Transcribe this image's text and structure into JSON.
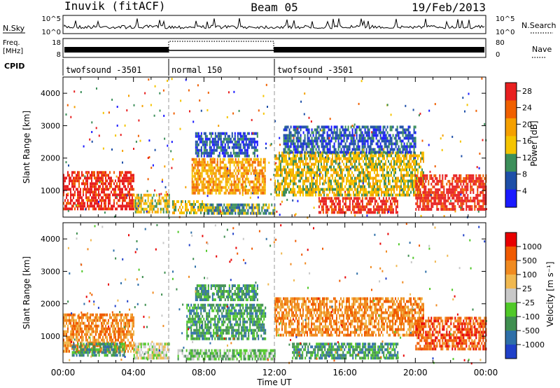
{
  "header": {
    "station": "Inuvik (fitACF)",
    "beam": "Beam 05",
    "date": "19/Feb/2013"
  },
  "strip": {
    "nsky_label": "N.Sky",
    "nsky_tick_top": "10^5",
    "nsky_tick_bottom": "10^0",
    "nsearch_label": "N.Search",
    "nsearch_tick_top": "10^5",
    "nsearch_tick_bottom": "10^0",
    "freq_label_1": "Freq.",
    "freq_label_2": "[MHz]",
    "freq_tick_top": "18",
    "freq_tick_bottom": "8",
    "nave_label": "Nave",
    "nave_tick_top": "80",
    "nave_tick_bottom": "0",
    "cpid_label": "CPID",
    "cpid_segments": [
      {
        "label": "twofsound -3501",
        "start_h": 0,
        "end_h": 6
      },
      {
        "label": "normal 150",
        "start_h": 6,
        "end_h": 12
      },
      {
        "label": "twofsound -3501",
        "start_h": 12,
        "end_h": 24
      }
    ]
  },
  "colors": {
    "power_scale": [
      "#1a1aff",
      "#1e4fa8",
      "#3c8f5a",
      "#f5c400",
      "#f5a000",
      "#f06000",
      "#e82020"
    ],
    "velocity_scale": [
      "#e80000",
      "#f05a00",
      "#f08a20",
      "#f0b850",
      "#c8c8c8",
      "#50c828",
      "#3f8f50",
      "#2e6fa8",
      "#2040c8"
    ]
  },
  "chart_data": [
    {
      "type": "heatmap",
      "name": "power",
      "xlabel": "",
      "ylabel": "Slant Range [km]",
      "xlim": [
        0,
        24
      ],
      "ylim": [
        180,
        4500
      ],
      "yticks": [
        "1000",
        "2000",
        "3000",
        "4000"
      ],
      "colorbar_label": "Power [dB]",
      "colorbar_ticks": [
        "4",
        "8",
        "12",
        "16",
        "20",
        "24",
        "28"
      ],
      "regions": [
        {
          "t0": 0,
          "t1": 4.0,
          "r0": 400,
          "r1": 1600,
          "level": 6
        },
        {
          "t0": 4.0,
          "t1": 6.0,
          "r0": 300,
          "r1": 900,
          "level": 3
        },
        {
          "t0": 6.2,
          "t1": 8.0,
          "r0": 300,
          "r1": 700,
          "level": 3
        },
        {
          "t0": 7.3,
          "t1": 11.5,
          "r0": 900,
          "r1": 2000,
          "level": 4
        },
        {
          "t0": 7.5,
          "t1": 11.0,
          "r0": 2100,
          "r1": 2800,
          "level": 1
        },
        {
          "t0": 8.0,
          "t1": 12.0,
          "r0": 300,
          "r1": 600,
          "level": 2
        },
        {
          "t0": 12.0,
          "t1": 20.5,
          "r0": 900,
          "r1": 2200,
          "level": 3
        },
        {
          "t0": 12.5,
          "t1": 20.0,
          "r0": 2200,
          "r1": 3000,
          "level": 1
        },
        {
          "t0": 14.5,
          "t1": 19.0,
          "r0": 300,
          "r1": 800,
          "level": 6
        },
        {
          "t0": 20.0,
          "t1": 24.0,
          "r0": 400,
          "r1": 1500,
          "level": 6
        }
      ]
    },
    {
      "type": "heatmap",
      "name": "velocity",
      "xlabel": "Time UT",
      "ylabel": "Slant Range [km]",
      "xlim": [
        0,
        24
      ],
      "ylim": [
        180,
        4500
      ],
      "xticks": [
        "00:00",
        "04:00",
        "08:00",
        "12:00",
        "16:00",
        "20:00",
        "00:00"
      ],
      "yticks": [
        "1000",
        "2000",
        "3000",
        "4000"
      ],
      "colorbar_label": "Velocity [m s⁻¹]",
      "colorbar_ticks": [
        "1000",
        "500",
        "100",
        "25",
        "-25",
        "-100",
        "-500",
        "-1000"
      ],
      "regions": [
        {
          "t0": 0,
          "t1": 4.0,
          "r0": 500,
          "r1": 1700,
          "level": 2
        },
        {
          "t0": 0.5,
          "t1": 3.5,
          "r0": 400,
          "r1": 800,
          "level": 6
        },
        {
          "t0": 4.0,
          "t1": 6.0,
          "r0": 300,
          "r1": 800,
          "level": 4
        },
        {
          "t0": 7.0,
          "t1": 11.5,
          "r0": 900,
          "r1": 2000,
          "level": 6
        },
        {
          "t0": 7.5,
          "t1": 11.0,
          "r0": 2100,
          "r1": 2600,
          "level": 6
        },
        {
          "t0": 6.5,
          "t1": 12.0,
          "r0": 300,
          "r1": 600,
          "level": 5
        },
        {
          "t0": 12.0,
          "t1": 20.5,
          "r0": 1000,
          "r1": 2200,
          "level": 2
        },
        {
          "t0": 13.0,
          "t1": 19.0,
          "r0": 300,
          "r1": 800,
          "level": 6
        },
        {
          "t0": 20.0,
          "t1": 24.0,
          "r0": 600,
          "r1": 1600,
          "level": 1
        }
      ]
    }
  ]
}
